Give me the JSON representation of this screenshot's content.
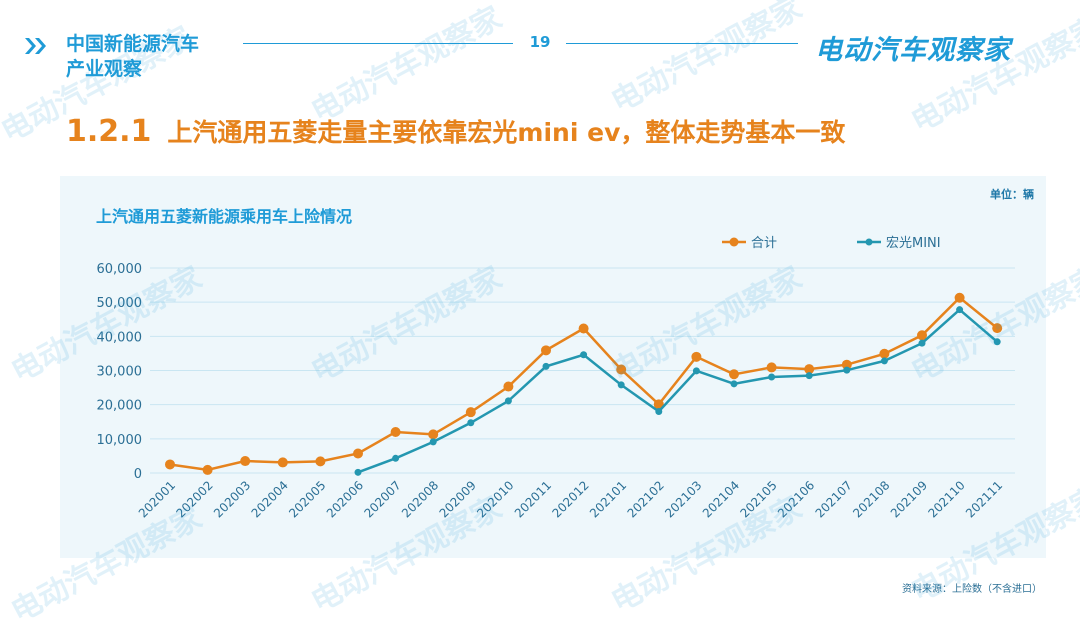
{
  "header": {
    "brand_left_line1": "中国新能源汽车",
    "brand_left_line2": "产业观察",
    "page_number": "19",
    "brand_right": "电动汽车观察家"
  },
  "slide": {
    "section_number": "1.2.1",
    "title": "上汽通用五菱走量主要依靠宏光mini ev，整体走势基本一致",
    "unit": "单位：辆",
    "source": "资料来源：上险数（不含进口）",
    "watermark": "电动汽车观察家"
  },
  "colors": {
    "accent": "#1f9bd7",
    "orange": "#e6831d",
    "teal": "#2497b0"
  },
  "chart_data": {
    "type": "line",
    "title": "上汽通用五菱新能源乘用车上险情况",
    "legend_position": "top-right",
    "grid": true,
    "ylim": [
      0,
      60000
    ],
    "yticks": [
      "0",
      "10,000",
      "20,000",
      "30,000",
      "40,000",
      "50,000",
      "60,000"
    ],
    "categories": [
      "202001",
      "202002",
      "202003",
      "202004",
      "202005",
      "202006",
      "202007",
      "202008",
      "202009",
      "202010",
      "202011",
      "202012",
      "202101",
      "202102",
      "202103",
      "202104",
      "202105",
      "202106",
      "202107",
      "202108",
      "202109",
      "202110",
      "202111"
    ],
    "series": [
      {
        "name": "合计",
        "color": "#e6831d",
        "values": [
          2500,
          900,
          3500,
          3100,
          3400,
          5700,
          12000,
          11300,
          17800,
          25300,
          35900,
          42300,
          30300,
          20100,
          34000,
          28900,
          30900,
          30400,
          31700,
          34900,
          40300,
          51300,
          42400
        ]
      },
      {
        "name": "宏光MINI",
        "color": "#2497b0",
        "values": [
          null,
          null,
          null,
          null,
          null,
          200,
          4300,
          9100,
          14700,
          21100,
          31200,
          34600,
          25800,
          18000,
          29900,
          26100,
          28100,
          28500,
          30100,
          32800,
          38000,
          47800,
          38400
        ]
      }
    ]
  }
}
